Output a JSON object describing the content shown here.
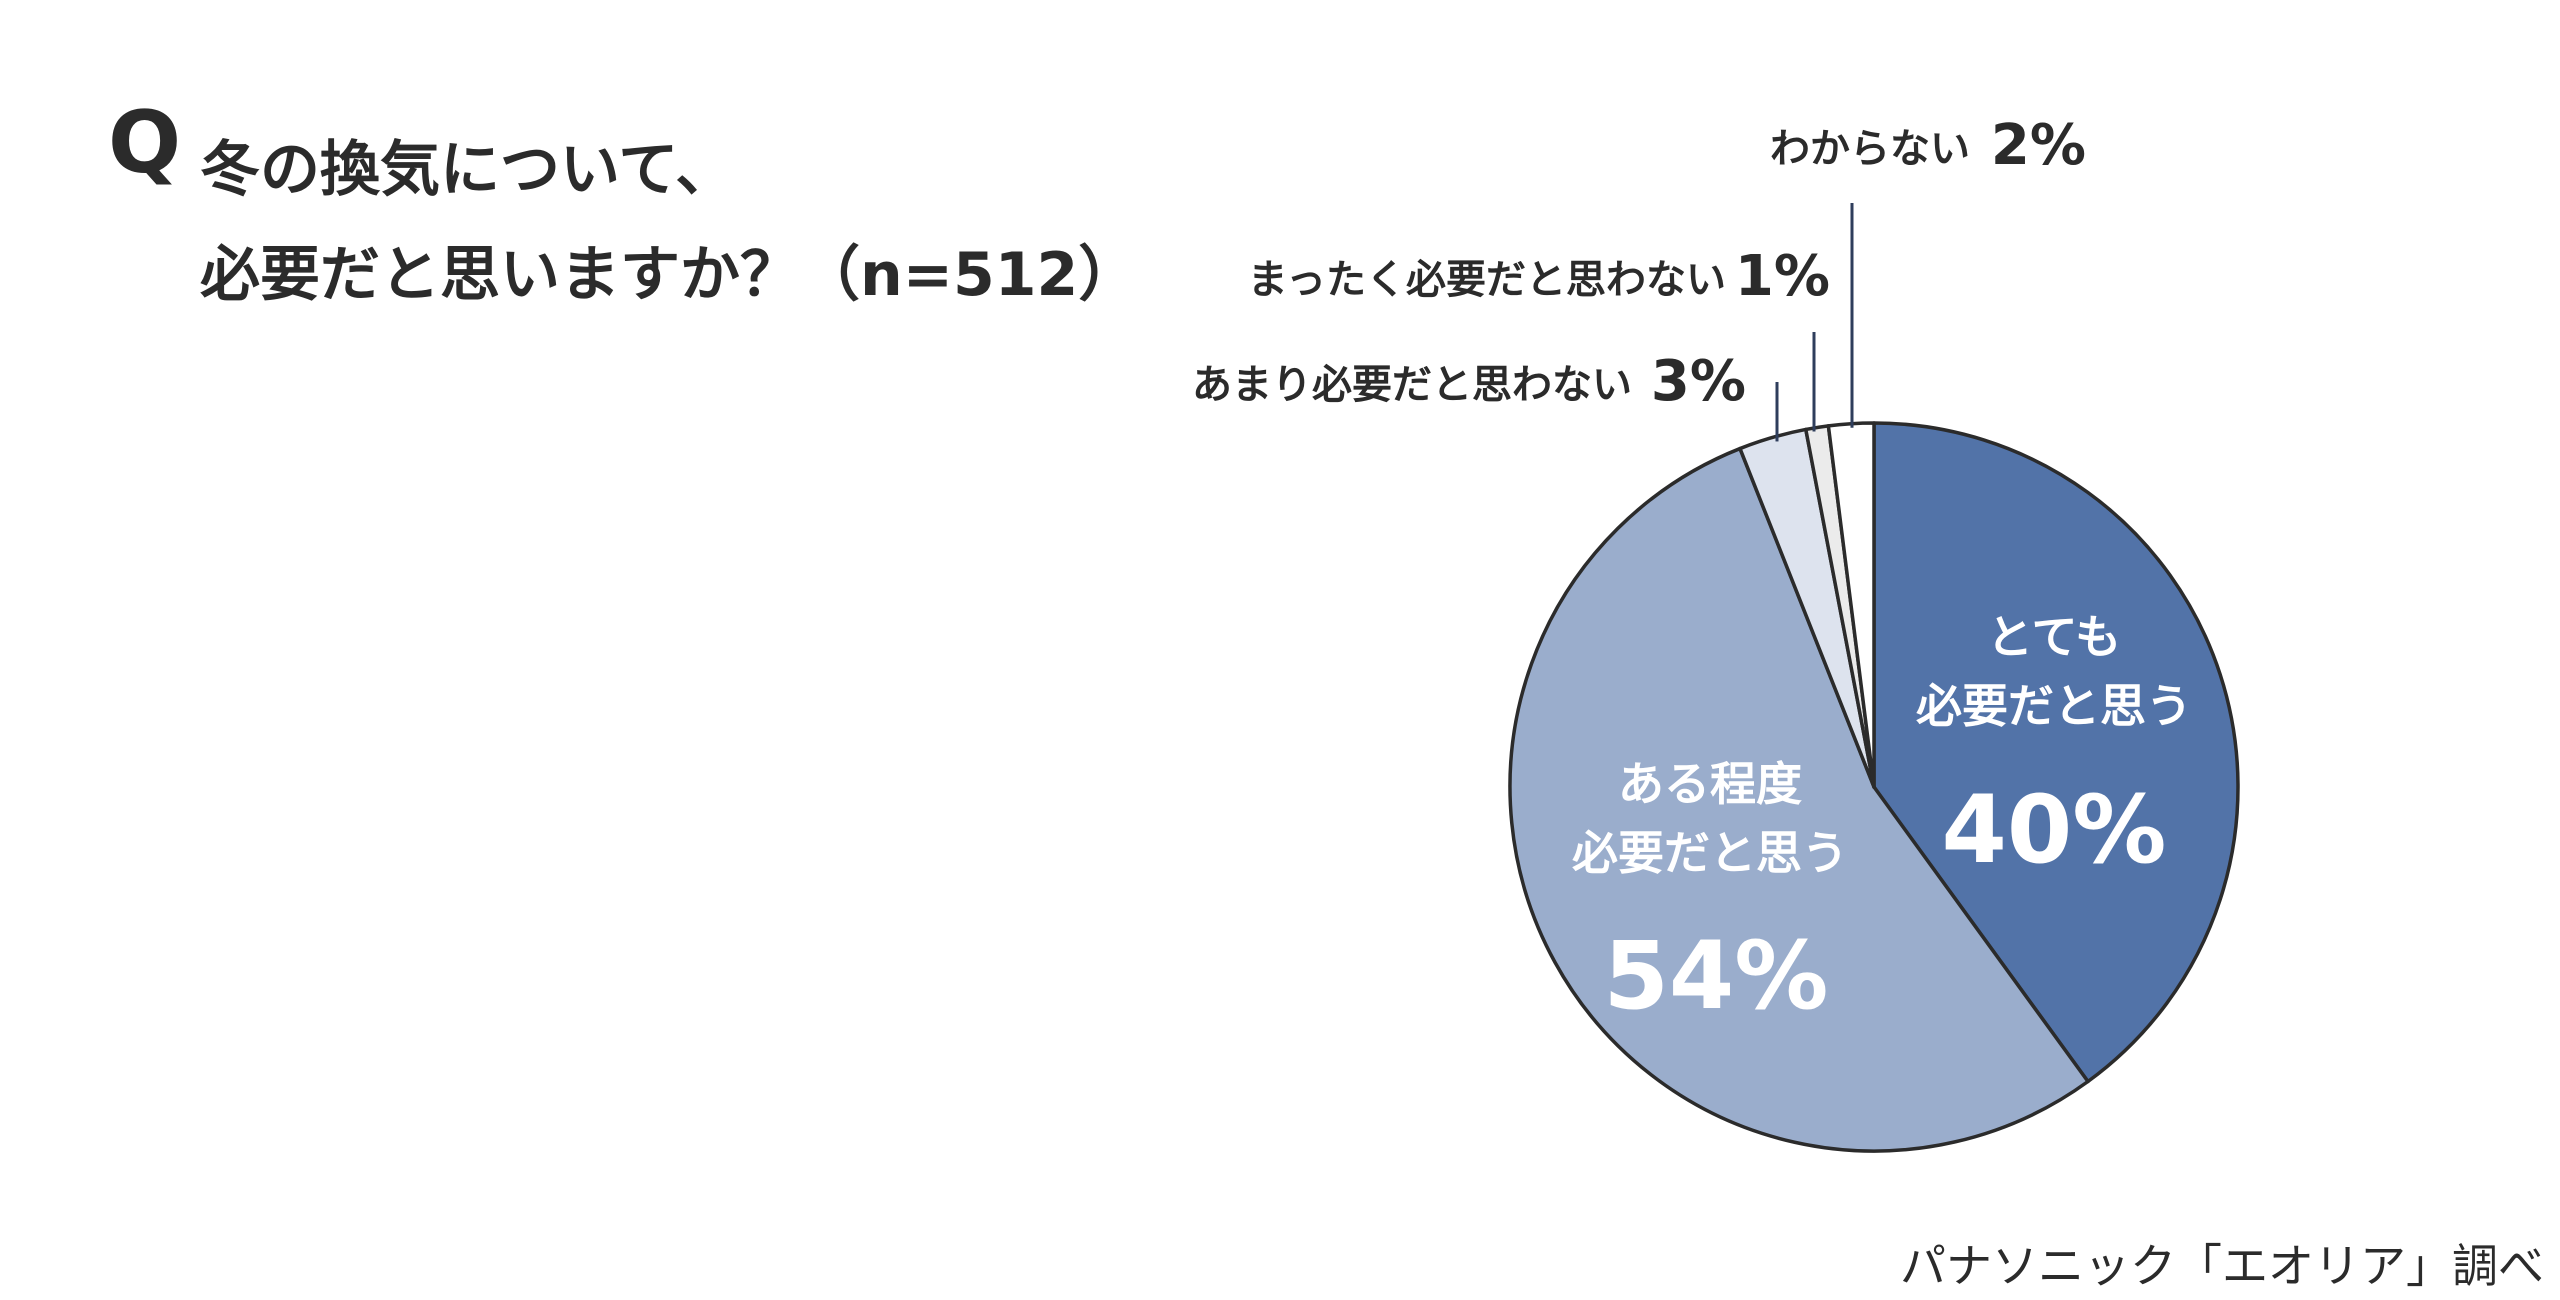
{
  "question": {
    "mark": "Q",
    "line1": "冬の換気について、",
    "line2": "必要だと思いますか？（n=512）"
  },
  "source": "パナソニック「エオリア」調べ",
  "colors": {
    "very_necessary": "#5273a8",
    "somewhat_necessary": "#9aadcc",
    "not_very_necessary": "#dde3ee",
    "not_at_all": "#ebebeb",
    "dont_know": "#ffffff",
    "outline": "#2b2b2b",
    "leader": "#2f3e5c"
  },
  "chart_data": {
    "type": "pie",
    "title": "冬の換気について、必要だと思いますか？（n=512）",
    "start": "12 o'clock",
    "direction": "clockwise",
    "slices": [
      {
        "label_lines": [
          "とても",
          "必要だと思う"
        ],
        "value_label": "40%",
        "value": 40,
        "label_position": "inside"
      },
      {
        "label_lines": [
          "ある程度",
          "必要だと思う"
        ],
        "value_label": "54%",
        "value": 54,
        "label_position": "inside"
      },
      {
        "label_lines": [
          "あまり必要だと思わない"
        ],
        "value_label": "3%",
        "value": 3,
        "label_position": "outside"
      },
      {
        "label_lines": [
          "まったく必要だと思わない"
        ],
        "value_label": "1%",
        "value": 1,
        "label_position": "outside"
      },
      {
        "label_lines": [
          "わからない"
        ],
        "value_label": "2%",
        "value": 2,
        "label_position": "outside"
      }
    ]
  }
}
